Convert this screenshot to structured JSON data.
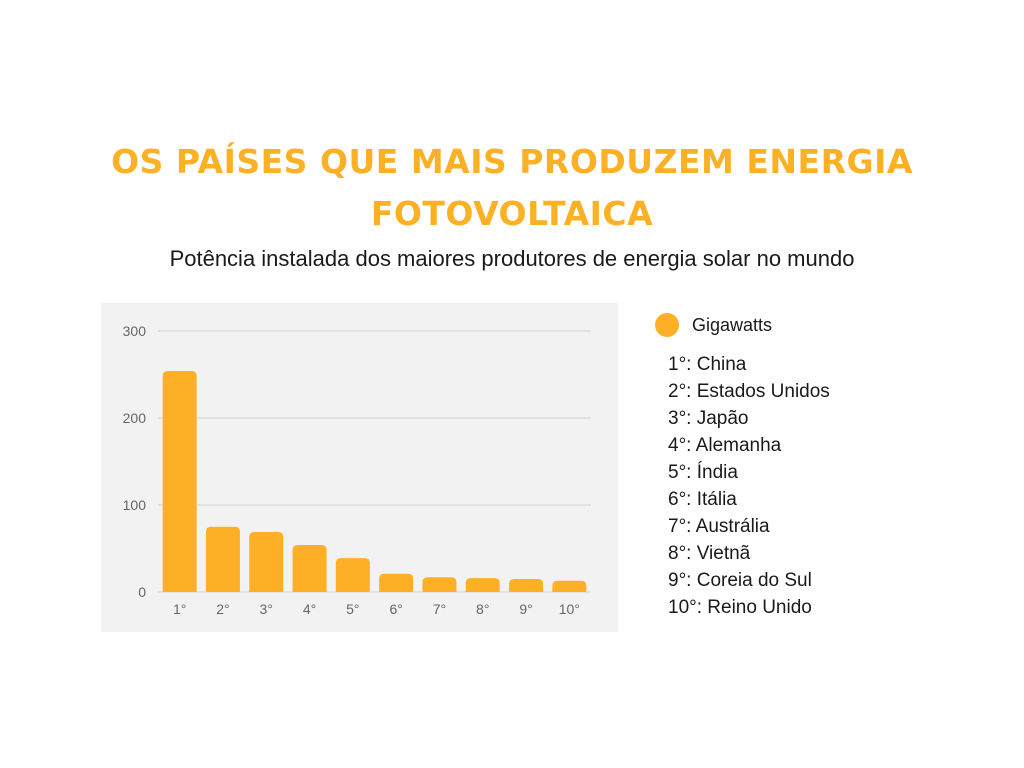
{
  "header": {
    "title_line1": "OS PAÍSES QUE MAIS PRODUZEM ENERGIA",
    "title_line2": "FOTOVOLTAICA",
    "subtitle": "Potência instalada dos maiores produtores de energia solar no mundo"
  },
  "colors": {
    "accent": "#fcb024",
    "bar": "#fdb026",
    "grid": "#d3d3d3",
    "panel_background": "#f2f2f2",
    "tick_text": "#666666"
  },
  "legend": {
    "icon": "circle-marker",
    "label": "Gigawatts"
  },
  "countries": [
    "1°: China",
    "2°: Estados Unidos",
    "3°: Japão",
    "4°: Alemanha",
    "5°: Índia",
    "6°: Itália",
    "7°: Austrália",
    "8°: Vietnã",
    "9°: Coreia do Sul",
    "10°: Reino Unido"
  ],
  "chart_data": {
    "type": "bar",
    "categories": [
      "1°",
      "2°",
      "3°",
      "4°",
      "5°",
      "6°",
      "7°",
      "8°",
      "9°",
      "10°"
    ],
    "series": [
      {
        "name": "Gigawatts",
        "values": [
          254,
          75,
          69,
          54,
          39,
          21,
          17,
          16,
          15,
          13
        ]
      }
    ],
    "ylim": [
      0,
      300
    ],
    "yticks": [
      0,
      100,
      200,
      300
    ],
    "grid": true,
    "legend_position": "right"
  }
}
